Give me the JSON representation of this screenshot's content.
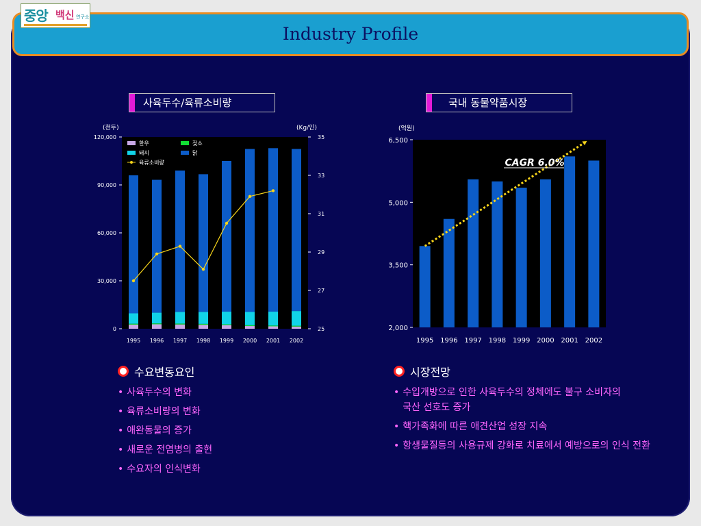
{
  "logo": {
    "big": "중앙",
    "mid": "백신",
    "small": "연구소"
  },
  "title": "Industry Profile",
  "chart_data": [
    {
      "type": "bar",
      "title": "사육두수/육류소비량",
      "y_unit": "(천두)",
      "y2_unit": "(Kg/인)",
      "categories": [
        "1995",
        "1996",
        "1997",
        "1998",
        "1999",
        "2000",
        "2001",
        "2002"
      ],
      "ylim": [
        0,
        120000
      ],
      "yticks": [
        0,
        30000,
        60000,
        90000,
        120000
      ],
      "ytick_labels": [
        "0",
        "30,000",
        "60,000",
        "90,000",
        "120,000"
      ],
      "y2lim": [
        25,
        35
      ],
      "y2ticks": [
        25,
        27,
        29,
        31,
        33,
        35
      ],
      "stacked": true,
      "series": [
        {
          "name": "한우",
          "color": "#c8a8e6",
          "values": [
            2600,
            2800,
            2700,
            2500,
            2300,
            1700,
            1500,
            1400
          ]
        },
        {
          "name": "젖소",
          "color": "#11dd33",
          "values": [
            550,
            550,
            550,
            550,
            500,
            500,
            500,
            500
          ]
        },
        {
          "name": "돼지",
          "color": "#11d3e8",
          "values": [
            6500,
            6700,
            7300,
            7500,
            7900,
            8300,
            8700,
            9200
          ]
        },
        {
          "name": "닭",
          "color": "#0c5cc8",
          "values": [
            86350,
            83150,
            88450,
            86150,
            94300,
            102000,
            102300,
            101400
          ]
        }
      ],
      "line_series": {
        "name": "육류소비량",
        "color": "#f6d41a",
        "axis": "right",
        "values": [
          27.5,
          28.9,
          29.3,
          28.1,
          30.5,
          31.9,
          32.2,
          null
        ]
      }
    },
    {
      "type": "bar",
      "title": "국내 동물약품시장",
      "y_unit": "(억원)",
      "categories": [
        "1995",
        "1996",
        "1997",
        "1998",
        "1999",
        "2000",
        "2001",
        "2002"
      ],
      "ylim": [
        2000,
        6500
      ],
      "yticks": [
        2000,
        3500,
        5000,
        6500
      ],
      "ytick_labels": [
        "2,000",
        "3,500",
        "5,000",
        "6,500"
      ],
      "values": [
        3950,
        4600,
        5550,
        5500,
        5350,
        5550,
        6100,
        6000
      ],
      "bar_color": "#0c5cc8",
      "trend": {
        "label": "CAGR 6.0%",
        "color": "#f6d41a"
      }
    }
  ],
  "left_section": {
    "heading": "수요변동요인",
    "items": [
      "사육두수의 변화",
      "육류소비량의 변화",
      "애완동물의 증가",
      "새로운 전염병의 출현",
      "수요자의 인식변화"
    ]
  },
  "right_section": {
    "heading": "시장전망",
    "items": [
      "수입개방으로 인한 사육두수의 정체에도 불구 소비자의 국산 선호도 증가",
      "핵가족화에 따른 애견산업 성장 지속",
      "항생물질등의 사용규제 강화로 치료에서 예방으로의 인식 전환"
    ]
  },
  "colors": {
    "slide_bg": "#060654",
    "header_bg": "#1a9fd0",
    "header_border": "#e88c22",
    "bullet_text": "#ff66ff"
  }
}
